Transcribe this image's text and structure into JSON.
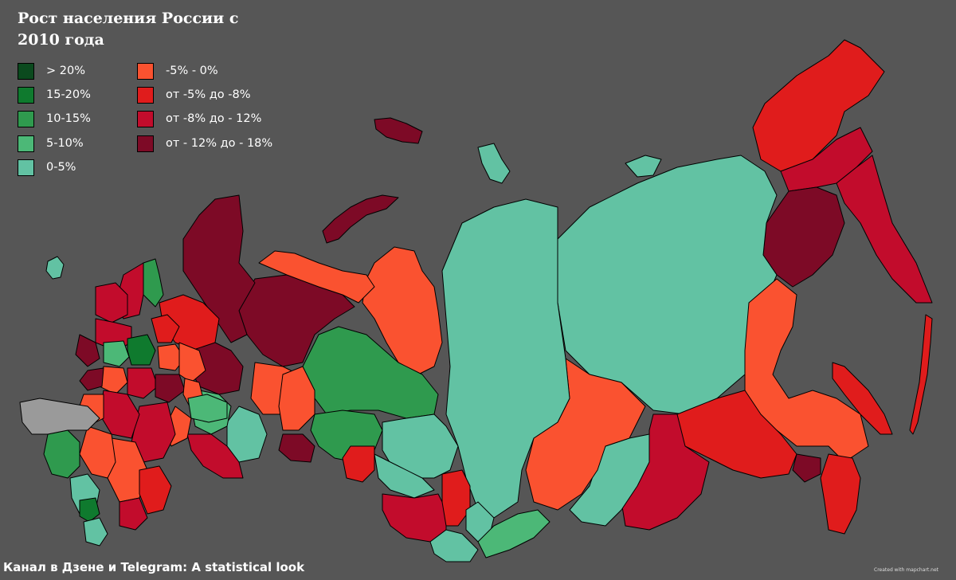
{
  "title": "Рост населения России с 2010 года",
  "legend": [
    {
      "label": "> 20%",
      "color": "#0b4a1e"
    },
    {
      "label": "15-20%",
      "color": "#0f7a2e"
    },
    {
      "label": "10-15%",
      "color": "#2f9a4e"
    },
    {
      "label": "5-10%",
      "color": "#4cb877"
    },
    {
      "label": "0-5%",
      "color": "#62c2a3"
    },
    {
      "label": "-5% - 0%",
      "color": "#fa5230"
    },
    {
      "label": "от -5% до -8%",
      "color": "#e01c1c"
    },
    {
      "label": "от -8% до - 12%",
      "color": "#c20c2c"
    },
    {
      "label": "от - 12% до - 18%",
      "color": "#7d0a26"
    }
  ],
  "footer": "Канал в Дзене и Telegram: A statistical look",
  "credit": "Created with mapchart.net",
  "no_data_color": "#9a9a9a"
}
